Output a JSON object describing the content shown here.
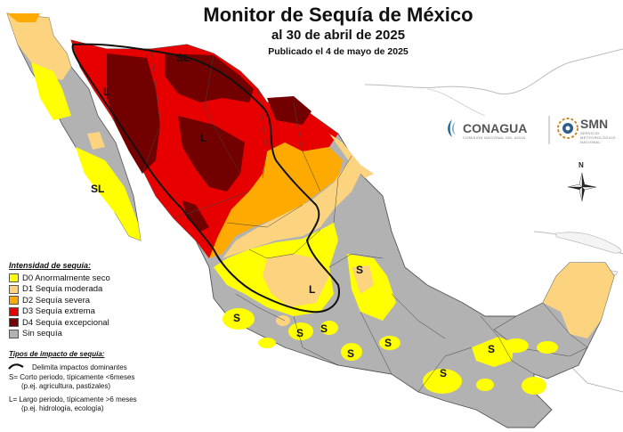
{
  "header": {
    "title": "Monitor de Sequía de México",
    "subtitle": "al 30 de abril de 2025",
    "published": "Publicado el 4 de mayo de 2025"
  },
  "legend": {
    "heading": "Intensidad de sequía:",
    "items": [
      {
        "code": "D0",
        "label": "D0 Anormalmente seco",
        "color": "#ffff00"
      },
      {
        "code": "D1",
        "label": "D1 Sequía moderada",
        "color": "#fcd37f"
      },
      {
        "code": "D2",
        "label": "D2 Sequía severa",
        "color": "#ffaa00"
      },
      {
        "code": "D3",
        "label": "D3 Sequía extrema",
        "color": "#e60000"
      },
      {
        "code": "D4",
        "label": "D4 Sequía excepcional",
        "color": "#730000"
      },
      {
        "code": "none",
        "label": "Sin sequía",
        "color": "#b2b2b2"
      }
    ]
  },
  "impacts": {
    "heading": "Tipos de impacto de sequía:",
    "delimit": "Delimita impactos dominantes",
    "short_1": "S= Corto periodo, típicamente <6meses",
    "short_2": "(p.ej. agricultura, pastizales)",
    "long_1": "L= Largo periodo, típicamente >6 meses",
    "long_2": "(p.ej. hidrología, ecología)"
  },
  "logos": {
    "conagua": "CONAGUA",
    "conagua_sub": "COMISIÓN NACIONAL DEL AGUA",
    "smn": "SMN",
    "smn_sub": "SERVICIO METEOROLÓGICO NACIONAL"
  },
  "compass": {
    "north": "N"
  },
  "map_labels": {
    "sl_north": "SL",
    "l_son": "L",
    "l_chih": "L",
    "sl_bcs": "SL",
    "l_center": "L",
    "s_sierra": "S",
    "s_jal": "S",
    "s_mich": "S",
    "s_gto": "S",
    "s_gro": "S",
    "s_oax": "S",
    "s_pue": "S",
    "s_ver": "S"
  },
  "colors": {
    "ocean": "#ffffff",
    "land_outline": "#555555",
    "no_drought": "#b2b2b2",
    "d0": "#ffff00",
    "d1": "#fcd37f",
    "d2": "#ffaa00",
    "d3": "#e60000",
    "d4": "#730000"
  }
}
